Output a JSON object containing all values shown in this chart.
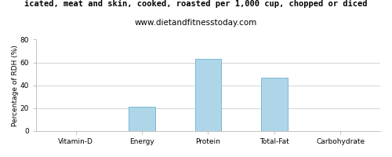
{
  "title_line1": "icated, meat and skin, cooked, roasted per 1,000 cup, chopped or diced",
  "title_line2": "www.dietandfitnesstoday.com",
  "categories": [
    "Vitamin-D",
    "Energy",
    "Protein",
    "Total-Fat",
    "Carbohydrate"
  ],
  "values": [
    0,
    21,
    63,
    47,
    0
  ],
  "bar_color": "#aed6e8",
  "bar_edgecolor": "#7ab8d4",
  "ylabel": "Percentage of RDH (%)",
  "ylim": [
    0,
    80
  ],
  "yticks": [
    0,
    20,
    40,
    60,
    80
  ],
  "background_color": "#ffffff",
  "plot_bg_color": "#f0f0f0",
  "title_fontsize": 7.5,
  "subtitle_fontsize": 7.5,
  "ylabel_fontsize": 6.5,
  "tick_fontsize": 6.5
}
